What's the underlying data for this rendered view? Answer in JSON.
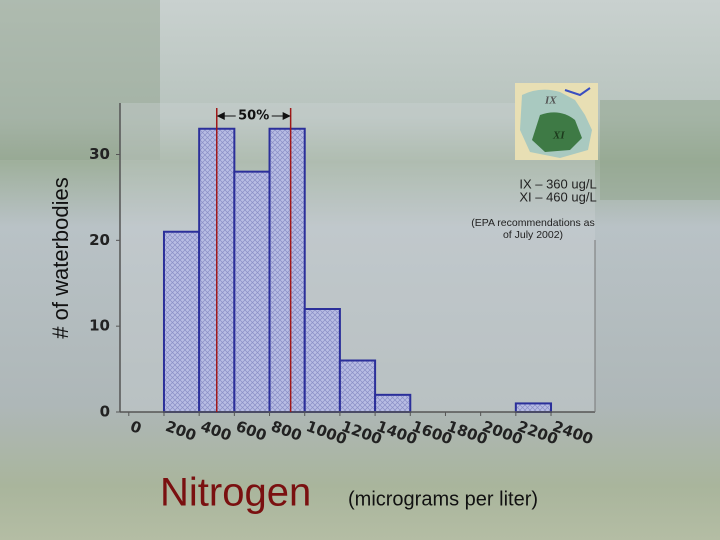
{
  "chart_data": {
    "type": "histogram",
    "title": "Nitrogen",
    "x_label": "(micrograms per liter)",
    "y_label": "# of waterbodies",
    "bins": [
      0,
      200,
      400,
      600,
      800,
      1000,
      1200,
      1400,
      1600,
      1800,
      2000,
      2200,
      2400
    ],
    "values": [
      0,
      21,
      33,
      28,
      33,
      12,
      6,
      2,
      0,
      0,
      0,
      1
    ],
    "color": "#2b2f9a",
    "xlim": [
      -50,
      2650
    ],
    "ylim": [
      0,
      36
    ],
    "xticks": [
      0,
      200,
      400,
      600,
      800,
      1000,
      1200,
      1400,
      1600,
      1800,
      2000,
      2200,
      2400
    ],
    "yticks": [
      0,
      10,
      20,
      30
    ],
    "reference_lines": [
      500,
      920
    ],
    "reference_color": "#a01818",
    "range_label": "50%",
    "annotations": [
      "IX – 360 ug/L",
      "XI – 460 ug/L",
      "(EPA recommendations as of July 2002)"
    ],
    "map_labels": [
      "IX",
      "XI"
    ]
  }
}
